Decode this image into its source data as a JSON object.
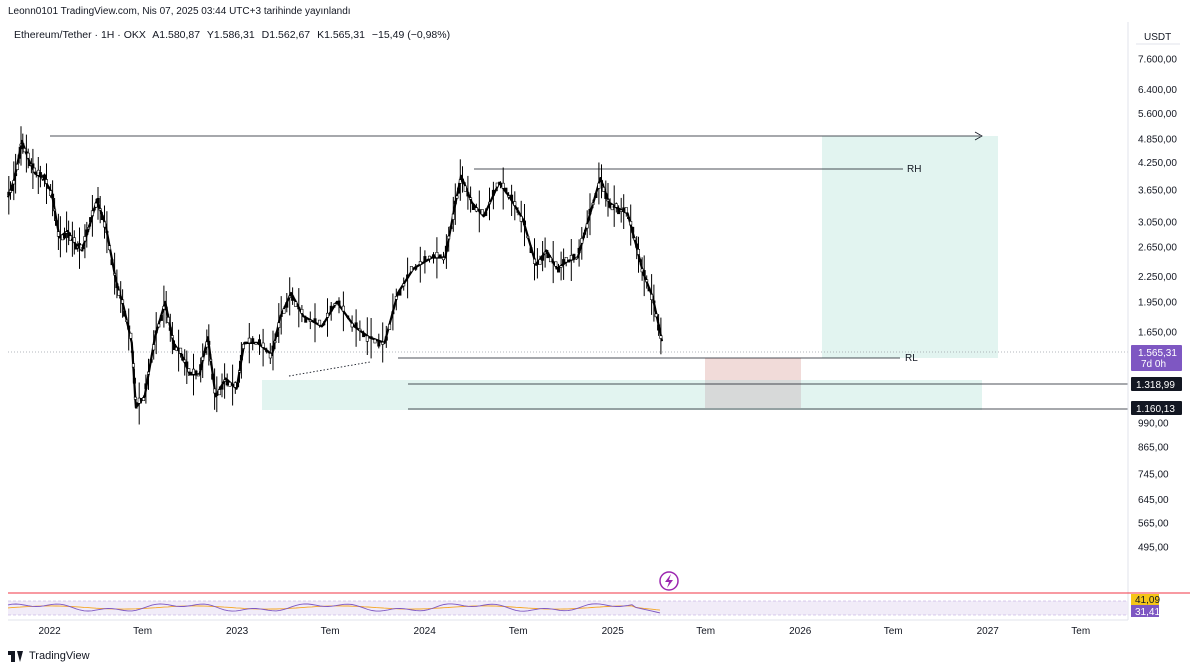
{
  "header": {
    "published_line": "Leonn0101 TradingView.com, Nis 07, 2025 03:44 UTC+3 tarihinde yayınlandı"
  },
  "symbol": {
    "name": "Ethereum/Tether · 1H · OKX",
    "open": "A1.580,87",
    "high": "Y1.586,31",
    "low": "D1.562,67",
    "close": "K1.565,31",
    "change": "−15,49 (−0,98%)"
  },
  "axis": {
    "currency": "USDT",
    "price_ticks": [
      "7.600,00",
      "6.400,00",
      "5.600,00",
      "4.850,00",
      "4.250,00",
      "3.650,00",
      "3.050,00",
      "2.650,00",
      "2.250,00",
      "1.950,00",
      "1.650,00",
      "990,00",
      "865,00",
      "745,00",
      "645,00",
      "565,00",
      "495,00"
    ],
    "time_ticks": [
      "2022",
      "Tem",
      "2023",
      "Tem",
      "2024",
      "Tem",
      "2025",
      "Tem",
      "2026",
      "Tem",
      "2027",
      "Tem"
    ]
  },
  "badges": {
    "last_price": "1.565,31",
    "countdown": "7d 0h",
    "level_1": "1.318,99",
    "level_2": "1.160,13",
    "rsi_ma": "41,09",
    "rsi": "31,41"
  },
  "annotations": {
    "range_high": "RH",
    "range_low": "RL"
  },
  "footer": {
    "brand": "TradingView"
  },
  "colors": {
    "candle": "#000000",
    "green_zone": "#d6efe9",
    "red_zone": "#f0d7d5",
    "gray_zone": "#dcdcdc",
    "badge_dark": "#131722",
    "badge_purple": "#7e57c2",
    "rsi_line": "#7e57c2",
    "rsi_ma_line": "#f5a623",
    "alert_icon": "#9c27b0"
  },
  "chart_data": {
    "type": "line",
    "scale": "log",
    "ylim": [
      430,
      7900
    ],
    "xlim": [
      "2021-10-12",
      "2027-10-01"
    ],
    "series": [
      {
        "values": [
          [
            "2021-10-12",
            3500
          ],
          [
            "2021-10-25",
            3900
          ],
          [
            "2021-11-08",
            4800
          ],
          [
            "2021-11-22",
            4300
          ],
          [
            "2021-12-04",
            4000
          ],
          [
            "2021-12-20",
            3900
          ],
          [
            "2022-01-05",
            3600
          ],
          [
            "2022-01-20",
            2800
          ],
          [
            "2022-02-05",
            2900
          ],
          [
            "2022-02-20",
            2700
          ],
          [
            "2022-03-05",
            2600
          ],
          [
            "2022-03-20",
            3000
          ],
          [
            "2022-04-03",
            3450
          ],
          [
            "2022-04-20",
            3000
          ],
          [
            "2022-05-10",
            2200
          ],
          [
            "2022-05-25",
            1900
          ],
          [
            "2022-06-10",
            1550
          ],
          [
            "2022-06-18",
            1080
          ],
          [
            "2022-07-05",
            1150
          ],
          [
            "2022-07-25",
            1600
          ],
          [
            "2022-08-14",
            1950
          ],
          [
            "2022-08-30",
            1550
          ],
          [
            "2022-09-15",
            1450
          ],
          [
            "2022-10-01",
            1300
          ],
          [
            "2022-10-20",
            1300
          ],
          [
            "2022-11-05",
            1600
          ],
          [
            "2022-11-20",
            1150
          ],
          [
            "2022-12-10",
            1270
          ],
          [
            "2022-12-31",
            1200
          ],
          [
            "2023-01-15",
            1550
          ],
          [
            "2023-02-10",
            1550
          ],
          [
            "2023-03-10",
            1450
          ],
          [
            "2023-03-25",
            1780
          ],
          [
            "2023-04-16",
            2050
          ],
          [
            "2023-05-10",
            1800
          ],
          [
            "2023-06-15",
            1700
          ],
          [
            "2023-07-14",
            1950
          ],
          [
            "2023-08-17",
            1700
          ],
          [
            "2023-09-15",
            1600
          ],
          [
            "2023-10-15",
            1550
          ],
          [
            "2023-11-10",
            2050
          ],
          [
            "2023-12-10",
            2350
          ],
          [
            "2024-01-15",
            2500
          ],
          [
            "2024-02-10",
            2500
          ],
          [
            "2024-02-28",
            3300
          ],
          [
            "2024-03-12",
            3950
          ],
          [
            "2024-04-02",
            3400
          ],
          [
            "2024-04-25",
            3150
          ],
          [
            "2024-05-25",
            3800
          ],
          [
            "2024-06-15",
            3500
          ],
          [
            "2024-07-10",
            3100
          ],
          [
            "2024-08-05",
            2400
          ],
          [
            "2024-08-25",
            2600
          ],
          [
            "2024-09-15",
            2350
          ],
          [
            "2024-10-05",
            2450
          ],
          [
            "2024-10-25",
            2500
          ],
          [
            "2024-11-15",
            3100
          ],
          [
            "2024-12-08",
            3900
          ],
          [
            "2024-12-25",
            3400
          ],
          [
            "2025-01-10",
            3300
          ],
          [
            "2025-01-30",
            3200
          ],
          [
            "2025-02-15",
            2700
          ],
          [
            "2025-03-01",
            2300
          ],
          [
            "2025-03-20",
            2000
          ],
          [
            "2025-04-07",
            1565.31
          ]
        ]
      }
    ],
    "levels": [
      {
        "label": "RH",
        "value": 4100
      },
      {
        "label": "RL",
        "value": 1550
      },
      {
        "value": 1318.99
      },
      {
        "value": 1160.13
      }
    ],
    "rsi": {
      "current": 31.41,
      "ma": 41.09
    }
  }
}
